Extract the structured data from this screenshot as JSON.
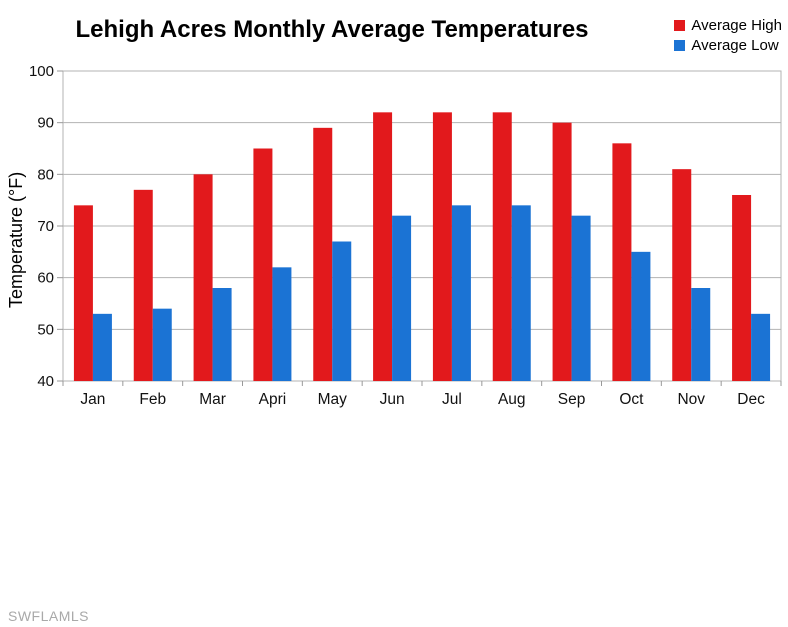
{
  "title": "Lehigh Acres Monthly Average Temperatures",
  "watermark": "SWFLAMLS",
  "colors": {
    "high_bar": "#e2191c",
    "low_bar": "#1b73d4",
    "gridline": "#b3b3b3",
    "tick": "#999999",
    "text": "#111111"
  },
  "chart_data": {
    "type": "bar",
    "title": "Lehigh Acres Monthly Average Temperatures",
    "categories": [
      "Jan",
      "Feb",
      "Mar",
      "Apri",
      "May",
      "Jun",
      "Jul",
      "Aug",
      "Sep",
      "Oct",
      "Nov",
      "Dec"
    ],
    "series": [
      {
        "name": "Average High",
        "color": "#e2191c",
        "values": [
          74,
          77,
          80,
          85,
          89,
          92,
          92,
          92,
          90,
          86,
          81,
          76
        ]
      },
      {
        "name": "Average Low",
        "color": "#1b73d4",
        "values": [
          53,
          54,
          58,
          62,
          67,
          72,
          74,
          74,
          72,
          65,
          58,
          53
        ]
      }
    ],
    "xlabel": "",
    "ylabel": "Temperature (°F)",
    "ylim": [
      40,
      100
    ],
    "yticks": [
      100,
      90,
      80,
      70,
      60,
      50,
      40
    ],
    "grid": true,
    "legend_position": "top-right"
  }
}
